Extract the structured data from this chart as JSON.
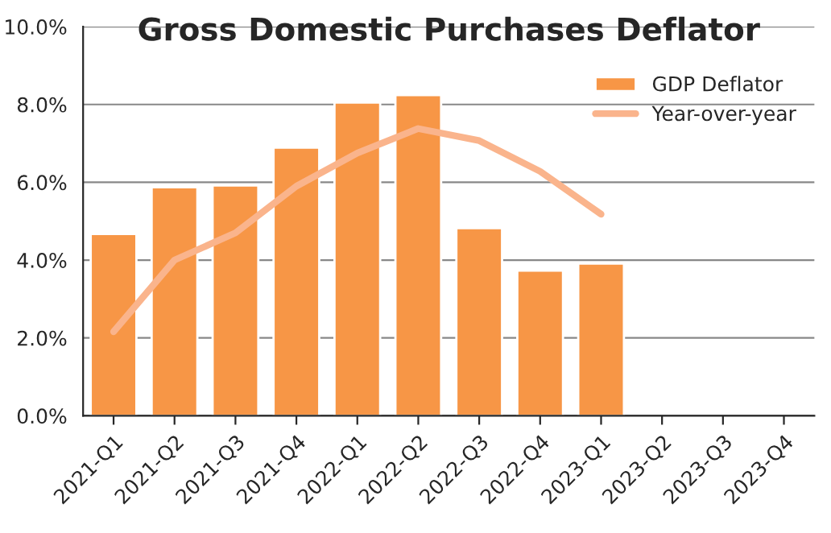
{
  "chart_data": {
    "type": "bar",
    "title": "Gross Domestic Purchases Deflator",
    "categories": [
      "2021-Q1",
      "2021-Q2",
      "2021-Q3",
      "2021-Q4",
      "2022-Q1",
      "2022-Q2",
      "2022-Q3",
      "2022-Q4",
      "2023-Q1",
      "2023-Q2",
      "2023-Q3",
      "2023-Q4"
    ],
    "series": [
      {
        "name": "GDP Deflator",
        "color": "#f79646",
        "values": [
          4.67,
          5.87,
          5.92,
          6.89,
          8.05,
          8.24,
          4.82,
          3.73,
          3.91,
          null,
          null,
          null
        ]
      },
      {
        "name": "Year-over-year",
        "type": "line",
        "color": "#fab48c",
        "values": [
          2.16,
          4.0,
          4.7,
          5.9,
          6.75,
          7.38,
          7.07,
          6.28,
          5.18,
          null,
          null,
          null
        ]
      }
    ],
    "ylim": [
      0,
      10
    ],
    "yticks": [
      {
        "value": 0,
        "label": "0.0%"
      },
      {
        "value": 2,
        "label": "2.0%"
      },
      {
        "value": 4,
        "label": "4.0%"
      },
      {
        "value": 6,
        "label": "6.0%"
      },
      {
        "value": 8,
        "label": "8.0%"
      },
      {
        "value": 10,
        "label": "10.0%"
      }
    ],
    "grid": "y",
    "legend": "top right",
    "line_style": "solid",
    "marker": "none"
  }
}
